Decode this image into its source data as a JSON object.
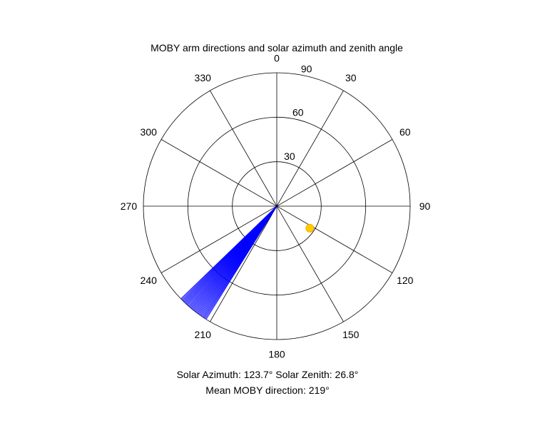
{
  "chart_data": {
    "type": "polar",
    "title": "MOBY arm directions and solar azimuth and zenith angle",
    "theta_direction": "clockwise",
    "theta_zero": "top",
    "theta_ticks": [
      0,
      30,
      60,
      90,
      120,
      150,
      180,
      210,
      240,
      270,
      300,
      330
    ],
    "r_ticks": [
      30,
      60,
      90
    ],
    "rlim": [
      0,
      90
    ],
    "grid": true,
    "series": [
      {
        "type": "radial-lines",
        "color": "#0000ff",
        "angles_deg": [
          212,
          212.5,
          213,
          213.5,
          214,
          214.5,
          215,
          215.5,
          216,
          216.5,
          217,
          217.5,
          218,
          218.5,
          219,
          219.5,
          220,
          220.5,
          221,
          221.5,
          222,
          222.5,
          223,
          223.5,
          224,
          224.5,
          225,
          225.5,
          226
        ],
        "r": 90
      },
      {
        "type": "marker",
        "color": "#ffcc00",
        "azimuth_deg": 123.7,
        "zenith_deg": 26.8
      }
    ]
  },
  "captions": {
    "line1": "Solar Azimuth: 123.7°   Solar Zenith: 26.8°",
    "line2": "Mean MOBY direction: 219°"
  }
}
